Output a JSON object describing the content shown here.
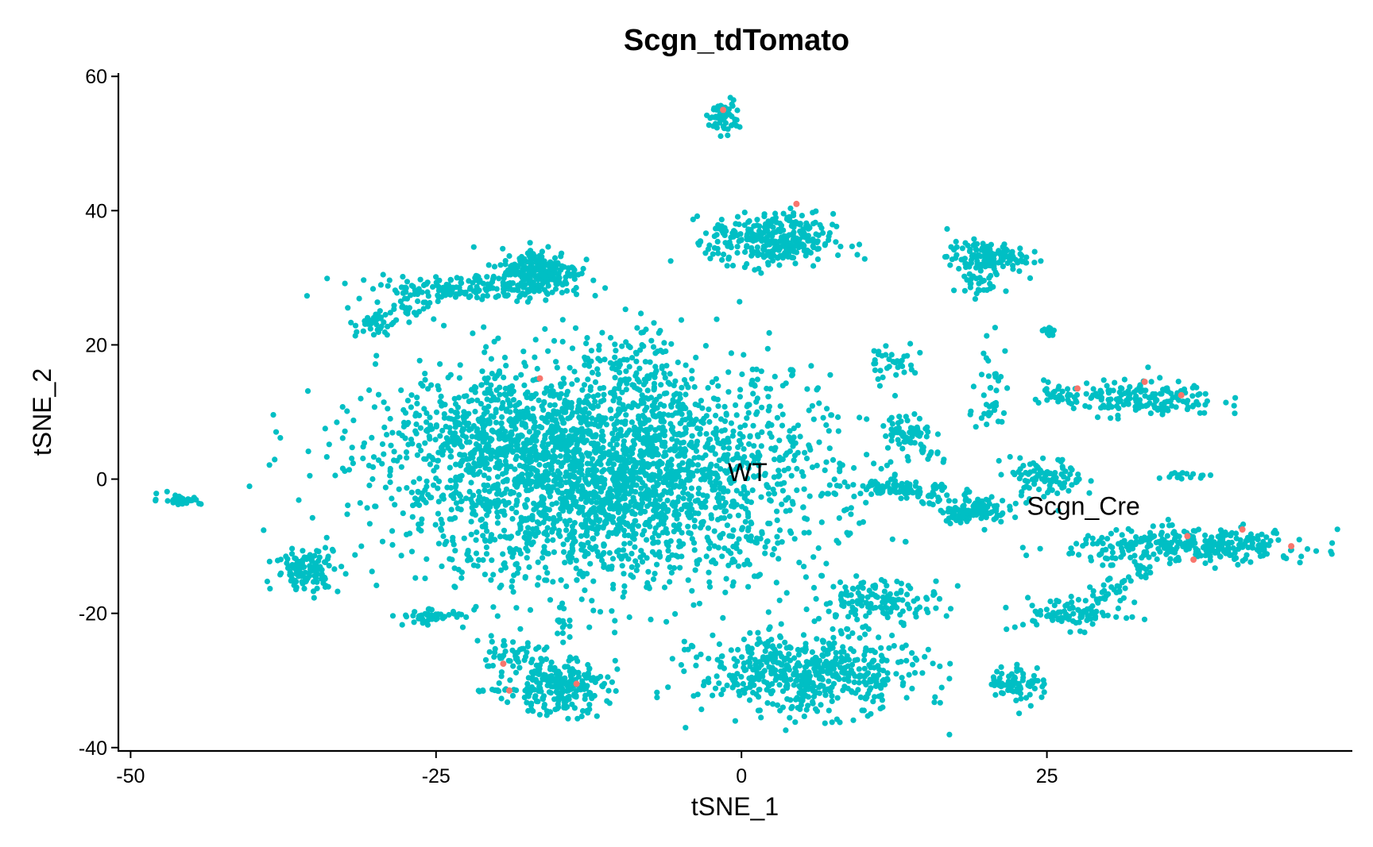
{
  "chart_data": {
    "type": "scatter",
    "title": "Scgn_tdTomato",
    "xlabel": "tSNE_1",
    "ylabel": "tSNE_2",
    "xlim": [
      -51,
      50
    ],
    "ylim": [
      -40.5,
      60.5
    ],
    "x_ticks": [
      -50,
      -25,
      0,
      25
    ],
    "x_tick_labels": [
      "-50",
      "-25",
      "0",
      "25"
    ],
    "y_ticks": [
      -40,
      -20,
      0,
      20,
      40,
      60
    ],
    "y_tick_labels": [
      "-40",
      "-20",
      "0",
      "20",
      "40",
      "60"
    ],
    "grid": false,
    "legend": "none",
    "colors": {
      "main": "#00bfc4",
      "highlight": "#f8766d"
    },
    "annotations": [
      {
        "text": "WT",
        "x": 0.5,
        "y": 1
      },
      {
        "text": "Scgn_Cre",
        "x": 28,
        "y": -4
      }
    ],
    "clusters": [
      {
        "cx": -11,
        "cy": 0,
        "sx": 9,
        "sy": 8,
        "n": 2600,
        "color": "main"
      },
      {
        "cx": -9,
        "cy": 15,
        "sx": 2,
        "sy": 4,
        "n": 120,
        "color": "main"
      },
      {
        "cx": -20,
        "cy": 8,
        "sx": 4,
        "sy": 4,
        "n": 300,
        "color": "main"
      },
      {
        "cx": -1.5,
        "cy": 54,
        "sx": 0.7,
        "sy": 1.2,
        "n": 60,
        "color": "main"
      },
      {
        "cx": 2.5,
        "cy": 35.5,
        "sx": 2.5,
        "sy": 2,
        "n": 320,
        "color": "main"
      },
      {
        "cx": -16.5,
        "cy": 31,
        "sx": 1.6,
        "sy": 1.7,
        "n": 230,
        "color": "main"
      },
      {
        "cx": -23,
        "cy": 28.5,
        "sx": 4.5,
        "sy": 0.9,
        "n": 130,
        "color": "main"
      },
      {
        "cx": -30,
        "cy": 23,
        "sx": 0.8,
        "sy": 1,
        "n": 35,
        "color": "main"
      },
      {
        "cx": 20,
        "cy": 33,
        "sx": 1.6,
        "sy": 1.2,
        "n": 140,
        "color": "main"
      },
      {
        "cx": 19,
        "cy": 29,
        "sx": 0.8,
        "sy": 1,
        "n": 25,
        "color": "main"
      },
      {
        "cx": 25.2,
        "cy": 22,
        "sx": 0.4,
        "sy": 0.5,
        "n": 12,
        "color": "main"
      },
      {
        "cx": 32,
        "cy": 12,
        "sx": 3.5,
        "sy": 1.3,
        "n": 180,
        "color": "main"
      },
      {
        "cx": 13.5,
        "cy": 7,
        "sx": 1,
        "sy": 1.2,
        "n": 60,
        "color": "main"
      },
      {
        "cx": 19,
        "cy": -4.5,
        "sx": 1.4,
        "sy": 1,
        "n": 110,
        "color": "main"
      },
      {
        "cx": 13.5,
        "cy": -1.5,
        "sx": 2,
        "sy": 0.7,
        "n": 60,
        "color": "main"
      },
      {
        "cx": 25,
        "cy": 0,
        "sx": 1.5,
        "sy": 1.5,
        "n": 90,
        "color": "main"
      },
      {
        "cx": 36.5,
        "cy": 0.5,
        "sx": 0.8,
        "sy": 0.4,
        "n": 15,
        "color": "main"
      },
      {
        "cx": 37,
        "cy": -10,
        "sx": 5,
        "sy": 1.2,
        "n": 330,
        "color": "main"
      },
      {
        "cx": 27,
        "cy": -20,
        "sx": 2.2,
        "sy": 1.2,
        "n": 90,
        "color": "main"
      },
      {
        "cx": 5.5,
        "cy": -29,
        "sx": 4.5,
        "sy": 3,
        "n": 550,
        "color": "main"
      },
      {
        "cx": 11.5,
        "cy": -18,
        "sx": 2.5,
        "sy": 1.5,
        "n": 130,
        "color": "main"
      },
      {
        "cx": 22.5,
        "cy": -30.5,
        "sx": 1.1,
        "sy": 1.5,
        "n": 70,
        "color": "main"
      },
      {
        "cx": -15,
        "cy": -31,
        "sx": 2,
        "sy": 2,
        "n": 230,
        "color": "main"
      },
      {
        "cx": -19,
        "cy": -26.5,
        "sx": 1.5,
        "sy": 1.2,
        "n": 50,
        "color": "main"
      },
      {
        "cx": -25.5,
        "cy": -20.5,
        "sx": 1.4,
        "sy": 0.5,
        "n": 45,
        "color": "main"
      },
      {
        "cx": -14.5,
        "cy": -22,
        "sx": 0.3,
        "sy": 0.7,
        "n": 10,
        "color": "main"
      },
      {
        "cx": -35.5,
        "cy": -13.5,
        "sx": 1.3,
        "sy": 1.6,
        "n": 120,
        "color": "main"
      },
      {
        "cx": -46,
        "cy": -3,
        "sx": 0.9,
        "sy": 0.4,
        "n": 35,
        "color": "main"
      },
      {
        "cx": 4,
        "cy": 16,
        "sx": 0.3,
        "sy": 0.3,
        "n": 5,
        "color": "main"
      },
      {
        "cx": 12.5,
        "cy": 17.5,
        "sx": 1,
        "sy": 1.5,
        "n": 25,
        "color": "main"
      },
      {
        "cx": 20.5,
        "cy": 13,
        "sx": 0.8,
        "sy": 3.5,
        "n": 40,
        "color": "main"
      }
    ],
    "streams": [
      {
        "x1": -29,
        "y1": 24,
        "x2": -20,
        "y2": 30,
        "n": 60,
        "jitter": 0.8,
        "color": "main"
      },
      {
        "x1": 29,
        "y1": -18,
        "x2": 33,
        "y2": -13,
        "n": 40,
        "jitter": 0.6,
        "color": "main"
      },
      {
        "x1": 9,
        "y1": 0.5,
        "x2": 18,
        "y2": -4.5,
        "n": 40,
        "jitter": 0.6,
        "color": "main"
      },
      {
        "x1": -21.5,
        "y1": -31.5,
        "x2": -19,
        "y2": -31.5,
        "n": 12,
        "jitter": 0.15,
        "color": "main"
      },
      {
        "x1": 11,
        "y1": 19,
        "x2": 14,
        "y2": 16,
        "n": 12,
        "jitter": 0.3,
        "color": "main"
      },
      {
        "x1": 25,
        "y1": 13.2,
        "x2": 29,
        "y2": 12,
        "n": 14,
        "jitter": 0.3,
        "color": "main"
      },
      {
        "x1": 14,
        "y1": 5,
        "x2": 17,
        "y2": 2,
        "n": 14,
        "jitter": 0.4,
        "color": "main"
      }
    ],
    "highlight_points": [
      {
        "x": -16.5,
        "y": 15
      },
      {
        "x": 4.5,
        "y": 41
      },
      {
        "x": -1.5,
        "y": 55
      },
      {
        "x": 27.5,
        "y": 13.5
      },
      {
        "x": 36,
        "y": 12.5
      },
      {
        "x": 33,
        "y": 14.5
      },
      {
        "x": 36.5,
        "y": -8.5
      },
      {
        "x": 37,
        "y": -12
      },
      {
        "x": 41,
        "y": -7.5
      },
      {
        "x": 45,
        "y": -10
      },
      {
        "x": -19.5,
        "y": -27.5
      },
      {
        "x": -13.5,
        "y": -30.5
      },
      {
        "x": -19,
        "y": -31.5
      }
    ]
  }
}
